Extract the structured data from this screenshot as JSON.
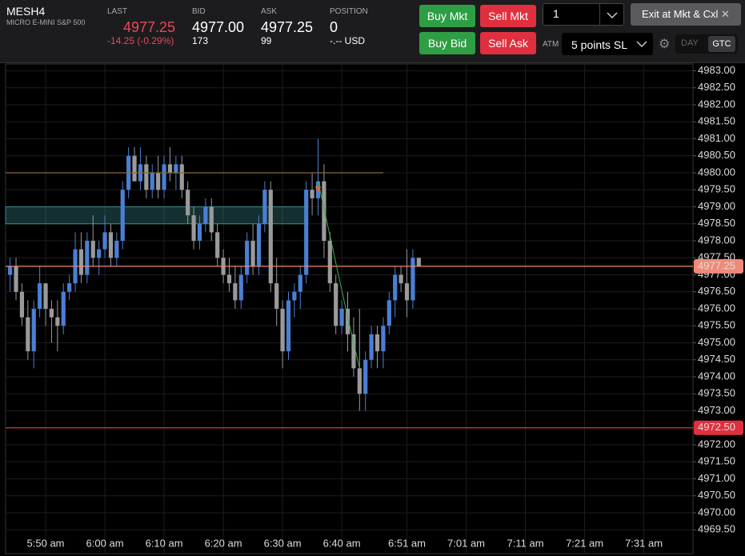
{
  "header": {
    "symbol": "MESH4",
    "description": "MICRO E-MINI S&P 500",
    "last": {
      "label": "LAST",
      "value": "4977.25",
      "change": "-14.25 (-0.29%)"
    },
    "bid": {
      "label": "BID",
      "value": "4977.00",
      "size": "173"
    },
    "ask": {
      "label": "ASK",
      "value": "4977.25",
      "size": "99"
    },
    "position": {
      "label": "POSITION",
      "value": "0",
      "amount": "-.-- USD"
    }
  },
  "controls": {
    "buy_mkt": "Buy Mkt",
    "sell_mkt": "Sell Mkt",
    "buy_bid": "Buy Bid",
    "sell_ask": "Sell Ask",
    "quantity": "1",
    "exit": "Exit at Mkt & Cxl",
    "atm_label": "ATM",
    "atm_strategy": "5 points SL",
    "day": "DAY",
    "gtc": "GTC"
  },
  "chart_data": {
    "type": "candlestick",
    "up_color": "#4a7fd4",
    "down_color": "#9a9a9a",
    "grid": true,
    "x": [
      344,
      345,
      346,
      347,
      348,
      349,
      350,
      351,
      352,
      353,
      354,
      355,
      356,
      357,
      358,
      359,
      360,
      361,
      362,
      363,
      364,
      365,
      366,
      367,
      368,
      369,
      370,
      371,
      372,
      373,
      374,
      375,
      376,
      377,
      378,
      379,
      380,
      381,
      382,
      383,
      384,
      385,
      386,
      387,
      388,
      389,
      390,
      391,
      392,
      393,
      394,
      395,
      396,
      397,
      398,
      399,
      400,
      401,
      402,
      403,
      404,
      405,
      406,
      407,
      408,
      409,
      410,
      411,
      412,
      413
    ],
    "open": [
      4977.0,
      4977.25,
      4976.5,
      4975.75,
      4974.75,
      4976.0,
      4976.75,
      4976.0,
      4975.75,
      4975.5,
      4976.5,
      4976.75,
      4977.75,
      4977.0,
      4978.0,
      4977.5,
      4977.75,
      4978.25,
      4977.5,
      4978.0,
      4979.5,
      4980.5,
      4979.75,
      4980.25,
      4979.5,
      4980.0,
      4979.5,
      4980.25,
      4980.0,
      4980.25,
      4979.5,
      4978.75,
      4978.0,
      4978.5,
      4979.0,
      4978.25,
      4977.5,
      4977.0,
      4976.75,
      4976.25,
      4977.0,
      4978.0,
      4977.25,
      4978.5,
      4979.5,
      4976.75,
      4976.0,
      4974.75,
      4976.25,
      4976.5,
      4977.0,
      4979.5,
      4979.25,
      4979.75,
      4978.0,
      4976.75,
      4975.5,
      4976.0,
      4975.25,
      4974.25,
      4973.5,
      4974.5,
      4975.25,
      4974.75,
      4975.5,
      4976.25,
      4977.0,
      4976.75,
      4976.25,
      4977.5
    ],
    "high": [
      4977.5,
      4977.5,
      4976.75,
      4976.25,
      4976.25,
      4977.25,
      4976.75,
      4976.25,
      4976.25,
      4976.75,
      4977.0,
      4978.25,
      4978.25,
      4978.25,
      4978.75,
      4978.0,
      4978.75,
      4978.5,
      4978.25,
      4979.75,
      4980.75,
      4980.75,
      4980.75,
      4980.5,
      4980.25,
      4980.5,
      4980.5,
      4980.75,
      4980.5,
      4980.5,
      4979.75,
      4979.0,
      4978.75,
      4979.25,
      4979.25,
      4978.5,
      4977.75,
      4977.5,
      4977.25,
      4977.25,
      4978.25,
      4978.5,
      4978.75,
      4979.75,
      4979.75,
      4977.5,
      4976.25,
      4976.5,
      4976.75,
      4977.25,
      4979.75,
      4980.0,
      4981.0,
      4980.25,
      4978.25,
      4977.0,
      4976.25,
      4976.5,
      4975.75,
      4976.0,
      4974.75,
      4975.5,
      4975.5,
      4975.75,
      4976.5,
      4977.25,
      4977.25,
      4977.75,
      4977.75,
      4977.5
    ],
    "low": [
      4976.5,
      4976.25,
      4975.5,
      4974.5,
      4974.25,
      4975.75,
      4975.5,
      4975.0,
      4974.75,
      4975.25,
      4976.25,
      4976.5,
      4976.75,
      4976.75,
      4977.25,
      4977.0,
      4977.5,
      4977.25,
      4977.25,
      4977.75,
      4979.25,
      4979.75,
      4979.5,
      4979.25,
      4979.25,
      4979.25,
      4979.25,
      4979.75,
      4979.5,
      4979.25,
      4978.5,
      4977.75,
      4977.75,
      4978.25,
      4978.0,
      4977.25,
      4976.75,
      4976.5,
      4976.0,
      4976.0,
      4976.75,
      4977.0,
      4977.0,
      4978.25,
      4976.5,
      4975.5,
      4974.25,
      4974.5,
      4975.75,
      4976.0,
      4976.75,
      4978.75,
      4978.75,
      4977.5,
      4976.5,
      4975.25,
      4975.25,
      4974.75,
      4974.0,
      4973.0,
      4973.0,
      4974.25,
      4974.25,
      4974.25,
      4975.25,
      4975.75,
      4976.5,
      4975.75,
      4976.0,
      4977.25
    ],
    "close": [
      4977.25,
      4976.5,
      4975.75,
      4974.75,
      4976.0,
      4976.75,
      4976.0,
      4975.75,
      4975.5,
      4976.5,
      4976.75,
      4977.75,
      4977.0,
      4978.0,
      4977.5,
      4977.75,
      4978.25,
      4977.5,
      4978.0,
      4979.5,
      4980.5,
      4979.75,
      4980.25,
      4979.5,
      4980.0,
      4979.5,
      4980.25,
      4980.0,
      4980.25,
      4979.5,
      4978.75,
      4978.0,
      4978.5,
      4979.0,
      4978.25,
      4977.5,
      4977.0,
      4976.75,
      4976.25,
      4977.0,
      4978.0,
      4977.25,
      4978.5,
      4979.5,
      4976.75,
      4976.0,
      4974.75,
      4976.25,
      4976.5,
      4977.0,
      4979.5,
      4979.25,
      4979.75,
      4978.0,
      4976.75,
      4975.5,
      4976.0,
      4975.25,
      4974.25,
      4973.5,
      4974.5,
      4975.25,
      4974.75,
      4975.5,
      4976.25,
      4977.0,
      4976.75,
      4976.25,
      4977.5,
      4977.25
    ],
    "xlim": [
      343.24,
      459.3
    ],
    "xticks": [
      {
        "value": 350,
        "label": "5:50 am"
      },
      {
        "value": 360,
        "label": "6:00 am"
      },
      {
        "value": 370,
        "label": "6:10 am"
      },
      {
        "value": 380,
        "label": "6:20 am"
      },
      {
        "value": 390,
        "label": "6:30 am"
      },
      {
        "value": 400,
        "label": "6:40 am"
      },
      {
        "value": 411,
        "label": "6:51 am"
      },
      {
        "value": 421,
        "label": "7:01 am"
      },
      {
        "value": 431,
        "label": "7:11 am"
      },
      {
        "value": 441,
        "label": "7:21 am"
      },
      {
        "value": 451,
        "label": "7:31 am"
      }
    ],
    "ylim": [
      4968.8,
      4983.2
    ],
    "yticks": [
      {
        "value": 4969.5,
        "label": "4969.50"
      },
      {
        "value": 4970,
        "label": "4970.00"
      },
      {
        "value": 4970.5,
        "label": "4970.50"
      },
      {
        "value": 4971,
        "label": "4971.00"
      },
      {
        "value": 4971.5,
        "label": "4971.50"
      },
      {
        "value": 4972,
        "label": "4972.00"
      },
      {
        "value": 4972.5,
        "label": "4972.50"
      },
      {
        "value": 4973,
        "label": "4973.00"
      },
      {
        "value": 4973.5,
        "label": "4973.50"
      },
      {
        "value": 4974,
        "label": "4974.00"
      },
      {
        "value": 4974.5,
        "label": "4974.50"
      },
      {
        "value": 4975,
        "label": "4975.00"
      },
      {
        "value": 4975.5,
        "label": "4975.50"
      },
      {
        "value": 4976,
        "label": "4976.00"
      },
      {
        "value": 4976.5,
        "label": "4976.50"
      },
      {
        "value": 4977,
        "label": "4977.00"
      },
      {
        "value": 4977.5,
        "label": "4977.50"
      },
      {
        "value": 4978,
        "label": "4978.00"
      },
      {
        "value": 4978.5,
        "label": "4978.50"
      },
      {
        "value": 4979,
        "label": "4979.00"
      },
      {
        "value": 4979.5,
        "label": "4979.50"
      },
      {
        "value": 4980,
        "label": "4980.00"
      },
      {
        "value": 4980.5,
        "label": "4980.50"
      },
      {
        "value": 4981,
        "label": "4981.00"
      },
      {
        "value": 4981.5,
        "label": "4981.50"
      },
      {
        "value": 4982,
        "label": "4982.00"
      },
      {
        "value": 4982.5,
        "label": "4982.50"
      },
      {
        "value": 4983,
        "label": "4983.00"
      }
    ],
    "price_lines": [
      {
        "value": 4980,
        "x_end": 407,
        "color": "#8a6a3a"
      },
      {
        "value": 4977.25,
        "label": "4977.25",
        "color": "#f08a78"
      },
      {
        "value": 4972.5,
        "label": "4972.50",
        "color": "#e0303f"
      }
    ],
    "zone": {
      "y": [
        4978.5,
        4979
      ],
      "x_end": 394,
      "color": "#3a8a8a"
    },
    "trend": {
      "x": [
        396,
        401,
        403
      ],
      "y": [
        4979.75,
        4975.75,
        4974.25
      ],
      "color": "#3fae4a"
    },
    "marker": {
      "x": 396,
      "y": 4979.5,
      "color": "#e8632c"
    }
  }
}
